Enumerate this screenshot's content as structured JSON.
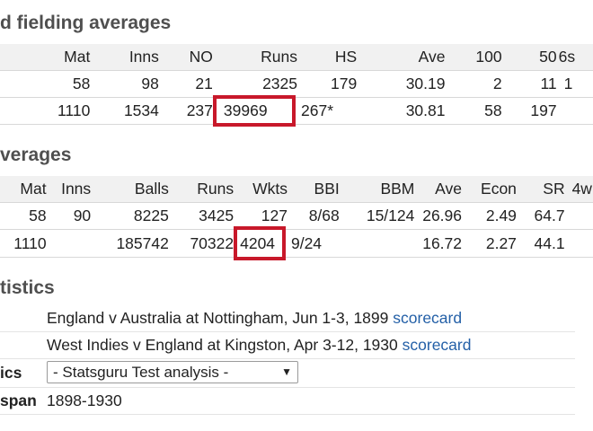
{
  "headings": {
    "batting": "d fielding averages",
    "bowling": "verages",
    "career": "tistics"
  },
  "batting": {
    "columns": [
      "Mat",
      "Inns",
      "NO",
      "Runs",
      "HS",
      "Ave",
      "100",
      "50",
      "6s"
    ],
    "rows": [
      [
        "58",
        "98",
        "21",
        "2325",
        "179",
        "30.19",
        "2",
        "11",
        "1"
      ],
      [
        "1110",
        "1534",
        "237",
        "39969",
        "267*",
        "30.81",
        "58",
        "197",
        ""
      ]
    ]
  },
  "bowling": {
    "columns": [
      "Mat",
      "Inns",
      "Balls",
      "Runs",
      "Wkts",
      "BBI",
      "BBM",
      "Ave",
      "Econ",
      "SR",
      "4w"
    ],
    "rows": [
      [
        "58",
        "90",
        "8225",
        "3425",
        "127",
        "8/68",
        "15/124",
        "26.96",
        "2.49",
        "64.7",
        ""
      ],
      [
        "1110",
        "",
        "185742",
        "70322",
        "4204",
        "9/24",
        "",
        "16.72",
        "2.27",
        "44.1",
        ""
      ]
    ]
  },
  "career": {
    "debut_1": "England v Australia at Nottingham, Jun 1-3, 1899",
    "debut_1_link": "scorecard",
    "debut_2": "West Indies v England at Kingston, Apr 3-12, 1930",
    "debut_2_link": "scorecard",
    "profile_label": "ics",
    "profile_select": "- Statsguru Test analysis -",
    "span_label": "span",
    "span_value": "1898-1930"
  },
  "colors": {
    "highlight": "#c8182a",
    "link": "#2460a7"
  }
}
